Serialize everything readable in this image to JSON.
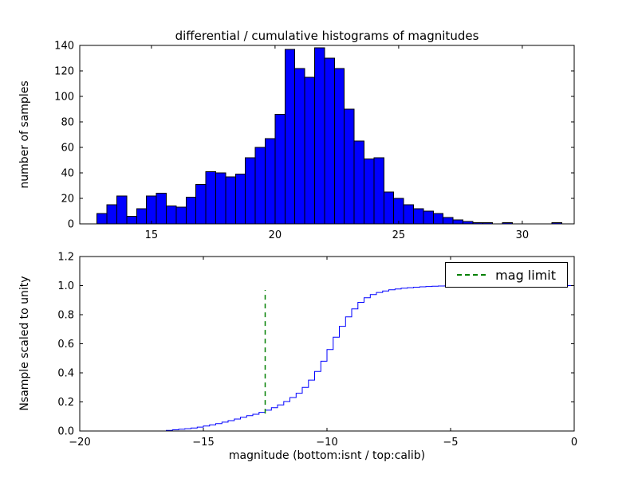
{
  "figure": {
    "title": "differential / cumulative histograms of magnitudes",
    "background": "#ffffff"
  },
  "chart_data": [
    {
      "type": "bar",
      "subtype": "histogram",
      "title": "differential / cumulative histograms of magnitudes",
      "ylabel": "number of samples",
      "xlim": [
        12.1,
        32.1
      ],
      "ylim": [
        0,
        140
      ],
      "xticks": [
        15,
        20,
        25,
        30
      ],
      "xticklabels": [
        "15",
        "20",
        "25",
        "30"
      ],
      "yticks": [
        0,
        20,
        40,
        60,
        80,
        100,
        120,
        140
      ],
      "yticklabels": [
        "0",
        "20",
        "40",
        "60",
        "80",
        "100",
        "120",
        "140"
      ],
      "bar_fill_color": "#0000ff",
      "bar_edge_color": "#000000",
      "grid": false,
      "bin_start": 12.8,
      "bin_width": 0.4,
      "counts": [
        8,
        15,
        22,
        6,
        12,
        22,
        24,
        14,
        13,
        21,
        31,
        41,
        40,
        37,
        39,
        52,
        60,
        67,
        86,
        137,
        122,
        115,
        138,
        130,
        122,
        90,
        65,
        51,
        52,
        25,
        20,
        15,
        12,
        10,
        8,
        5,
        3,
        2,
        1,
        1,
        0,
        1,
        0,
        0,
        0,
        0,
        1,
        0
      ]
    },
    {
      "type": "line",
      "subtype": "cumulative-step",
      "ylabel": "Nsample scaled to unity",
      "xlabel": "magnitude (bottom:isnt / top:calib)",
      "xlim": [
        -20,
        0
      ],
      "ylim": [
        0,
        1.2
      ],
      "xticks": [
        -20,
        -15,
        -10,
        -5,
        0
      ],
      "xticklabels": [
        "−20",
        "−15",
        "−10",
        "−5",
        "0"
      ],
      "yticks": [
        0,
        0.2,
        0.4,
        0.6,
        0.8,
        1.0,
        1.2
      ],
      "yticklabels": [
        "0.0",
        "0.2",
        "0.4",
        "0.6",
        "0.8",
        "1.0",
        "1.2"
      ],
      "line_color": "#0000ff",
      "grid": false,
      "steps": {
        "x": [
          -16.5,
          -16.25,
          -16.0,
          -15.75,
          -15.5,
          -15.25,
          -15.0,
          -14.75,
          -14.5,
          -14.25,
          -14.0,
          -13.75,
          -13.5,
          -13.25,
          -13.0,
          -12.75,
          -12.5,
          -12.25,
          -12.0,
          -11.75,
          -11.5,
          -11.25,
          -11.0,
          -10.75,
          -10.5,
          -10.25,
          -10.0,
          -9.75,
          -9.5,
          -9.25,
          -9.0,
          -8.75,
          -8.5,
          -8.25,
          -8.0,
          -7.75,
          -7.5,
          -7.25,
          -7.0,
          -6.75,
          -6.5,
          -6.25,
          -6.0,
          -5.75,
          -5.5,
          -5.25,
          -5.0,
          -4.75,
          0
        ],
        "y": [
          0,
          0.004,
          0.008,
          0.012,
          0.016,
          0.021,
          0.027,
          0.034,
          0.042,
          0.051,
          0.061,
          0.071,
          0.082,
          0.094,
          0.105,
          0.115,
          0.128,
          0.143,
          0.16,
          0.18,
          0.203,
          0.23,
          0.26,
          0.3,
          0.35,
          0.41,
          0.48,
          0.56,
          0.645,
          0.72,
          0.785,
          0.84,
          0.885,
          0.916,
          0.938,
          0.953,
          0.963,
          0.971,
          0.977,
          0.982,
          0.986,
          0.989,
          0.992,
          0.994,
          0.996,
          0.997,
          0.998,
          1.0,
          1.0
        ]
      },
      "mag_limit_line": {
        "x": -12.5,
        "y_from": 0.12,
        "y_to": 0.97,
        "color": "#008000",
        "style": "dashed"
      },
      "legend": {
        "label": "mag limit",
        "position": "upper right",
        "line_color": "#008000",
        "line_style": "dashed"
      }
    }
  ]
}
